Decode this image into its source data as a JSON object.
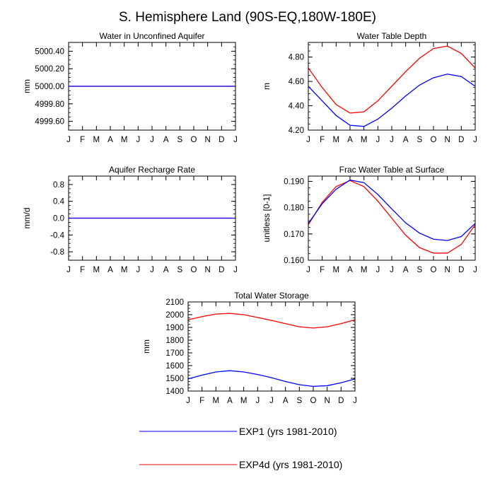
{
  "title": "S. Hemisphere Land (90S-EQ,180W-180E)",
  "colors": {
    "exp1": "#0000ff",
    "exp4d": "#ff0000",
    "frame": "#000000"
  },
  "months": [
    "J",
    "F",
    "M",
    "A",
    "M",
    "J",
    "J",
    "A",
    "S",
    "O",
    "N",
    "D",
    "J"
  ],
  "legend": [
    {
      "name": "EXP1 (yrs 1981-2010)",
      "color": "#0000ff"
    },
    {
      "name": "EXP4d (yrs 1981-2010)",
      "color": "#ff0000"
    }
  ],
  "chart_data": [
    {
      "id": "aquifer-water",
      "type": "line",
      "title": "Water in Unconfined Aquifer",
      "ylabel": "mm",
      "ylim": [
        4999.5,
        5000.5
      ],
      "yticks": [
        4999.6,
        4999.8,
        5000.0,
        5000.2,
        5000.4
      ],
      "ytick_labels": [
        "4999.60",
        "4999.80",
        "5000.00",
        "5000.20",
        "5000.40"
      ],
      "series": [
        {
          "name": "EXP1",
          "values": [
            5000,
            5000,
            5000,
            5000,
            5000,
            5000,
            5000,
            5000,
            5000,
            5000,
            5000,
            5000,
            5000
          ]
        },
        {
          "name": "EXP4d",
          "values": [
            5000,
            5000,
            5000,
            5000,
            5000,
            5000,
            5000,
            5000,
            5000,
            5000,
            5000,
            5000,
            5000
          ]
        }
      ]
    },
    {
      "id": "water-table-depth",
      "type": "line",
      "title": "Water Table Depth",
      "ylabel": "m",
      "ylim": [
        4.2,
        4.92
      ],
      "yticks": [
        4.2,
        4.4,
        4.6,
        4.8
      ],
      "ytick_labels": [
        "4.20",
        "4.40",
        "4.60",
        "4.80"
      ],
      "series": [
        {
          "name": "EXP1",
          "values": [
            4.56,
            4.44,
            4.32,
            4.24,
            4.23,
            4.29,
            4.38,
            4.48,
            4.57,
            4.63,
            4.66,
            4.64,
            4.56
          ]
        },
        {
          "name": "EXP4d",
          "values": [
            4.71,
            4.55,
            4.41,
            4.34,
            4.35,
            4.44,
            4.56,
            4.68,
            4.79,
            4.87,
            4.89,
            4.83,
            4.71
          ]
        }
      ]
    },
    {
      "id": "recharge-rate",
      "type": "line",
      "title": "Aquifer Recharge Rate",
      "ylabel": "mm/d",
      "ylim": [
        -1.0,
        1.0
      ],
      "yticks": [
        -0.8,
        -0.4,
        0.0,
        0.4,
        0.8
      ],
      "ytick_labels": [
        "-0.8",
        "-0.4",
        "0.0",
        "0.4",
        "0.8"
      ],
      "series": [
        {
          "name": "EXP1",
          "values": [
            0,
            0,
            0,
            0,
            0,
            0,
            0,
            0,
            0,
            0,
            0,
            0,
            0
          ]
        },
        {
          "name": "EXP4d",
          "values": [
            0,
            0,
            0,
            0,
            0,
            0,
            0,
            0,
            0,
            0,
            0,
            0,
            0
          ]
        }
      ]
    },
    {
      "id": "frac-water-table",
      "type": "line",
      "title": "Frac Water Table at Surface",
      "ylabel": "unitless [0-1]",
      "ylim": [
        0.16,
        0.192
      ],
      "yticks": [
        0.16,
        0.17,
        0.18,
        0.19
      ],
      "ytick_labels": [
        "0.160",
        "0.170",
        "0.180",
        "0.190"
      ],
      "series": [
        {
          "name": "EXP1",
          "values": [
            0.174,
            0.1815,
            0.187,
            0.1905,
            0.1895,
            0.185,
            0.1795,
            0.1742,
            0.1703,
            0.168,
            0.1675,
            0.169,
            0.174
          ]
        },
        {
          "name": "EXP4d",
          "values": [
            0.1735,
            0.182,
            0.188,
            0.1903,
            0.188,
            0.1825,
            0.176,
            0.1695,
            0.1648,
            0.1627,
            0.1627,
            0.166,
            0.1735
          ]
        }
      ]
    },
    {
      "id": "total-water-storage",
      "type": "line",
      "title": "Total Water Storage",
      "ylabel": "mm",
      "ylim": [
        1400,
        2100
      ],
      "yticks": [
        1400,
        1500,
        1600,
        1700,
        1800,
        1900,
        2000,
        2100
      ],
      "ytick_labels": [
        "1400",
        "1500",
        "1600",
        "1700",
        "1800",
        "1900",
        "2000",
        "2100"
      ],
      "series": [
        {
          "name": "EXP1",
          "values": [
            1495,
            1525,
            1550,
            1560,
            1550,
            1530,
            1505,
            1475,
            1450,
            1437,
            1442,
            1465,
            1495
          ]
        },
        {
          "name": "EXP4d",
          "values": [
            1960,
            1985,
            2005,
            2010,
            2000,
            1978,
            1955,
            1930,
            1905,
            1895,
            1905,
            1930,
            1960
          ]
        }
      ]
    }
  ]
}
